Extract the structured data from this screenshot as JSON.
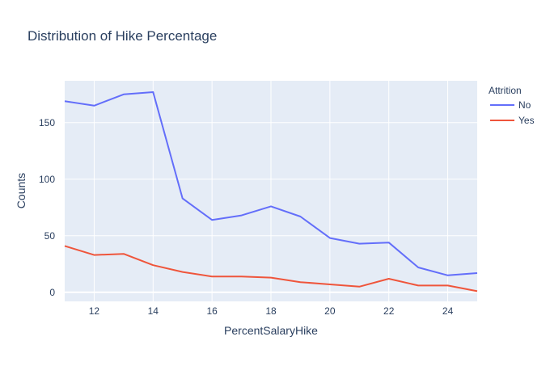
{
  "chart_data": {
    "type": "line",
    "title": "Distribution of Hike Percentage",
    "xlabel": "PercentSalaryHike",
    "ylabel": "Counts",
    "xlim": [
      11,
      25
    ],
    "ylim": [
      -8,
      187
    ],
    "xticks": [
      12,
      14,
      16,
      18,
      20,
      22,
      24
    ],
    "yticks": [
      0,
      50,
      100,
      150
    ],
    "grid": true,
    "legend": {
      "title": "Attrition",
      "placement": "top-right"
    },
    "x": [
      11,
      12,
      13,
      14,
      15,
      16,
      17,
      18,
      19,
      20,
      21,
      22,
      23,
      24,
      25
    ],
    "series": [
      {
        "name": "No",
        "color": "#636efa",
        "values": [
          169,
          165,
          175,
          177,
          83,
          64,
          68,
          76,
          67,
          48,
          43,
          44,
          22,
          15,
          17
        ]
      },
      {
        "name": "Yes",
        "color": "#ef553b",
        "values": [
          41,
          33,
          34,
          24,
          18,
          14,
          14,
          13,
          9,
          7,
          5,
          12,
          6,
          6,
          1
        ]
      }
    ],
    "colors": {
      "plot_bg": "#e5ecf6",
      "grid": "#ffffff",
      "text": "#2a3f5f"
    }
  }
}
